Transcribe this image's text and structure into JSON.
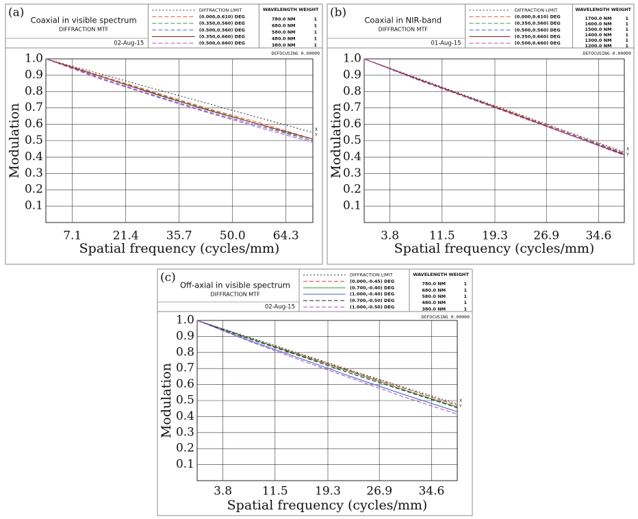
{
  "chart_data": [
    {
      "type": "line",
      "panel": "(a)",
      "title": "Coaxial in visible spectrum",
      "subtitle": "DIFFRACTION MTF",
      "date": "02-Aug-15",
      "wavelength_header": "WAVELENGTH WEIGHT",
      "wavelengths": [
        "780.0 NM",
        "680.0 NM",
        "580.0 NM",
        "480.0 NM",
        "380.0 NM"
      ],
      "weights": [
        "1",
        "1",
        "1",
        "1",
        "1"
      ],
      "defocusing": "DEFOCUSING 0.00000",
      "x_label": "Spatial frequency (cycles/mm)",
      "y_label": "Modulation",
      "end_marks": [
        "X",
        "Y"
      ],
      "x": [
        0,
        14.3,
        28.6,
        42.9,
        57.2,
        71.5
      ],
      "xlim": [
        0,
        71.5
      ],
      "ylim": [
        0,
        1
      ],
      "xticks": [
        7.1,
        21.4,
        35.7,
        {
          "value": 50,
          "label": "50.0"
        },
        64.3
      ],
      "yticks": [
        0.1,
        0.2,
        0.3,
        0.4,
        0.5,
        0.6,
        0.7,
        0.8,
        0.9,
        {
          "value": 1,
          "label": "1.0"
        }
      ],
      "grid": true,
      "series": [
        {
          "name": "DIFFRACTION LIMIT",
          "color": "#333333",
          "style": "dotted",
          "values": [
            1,
            0.91,
            0.82,
            0.73,
            0.64,
            0.55
          ]
        },
        {
          "name": "(0.000,0.610) DEG",
          "color": "#e8603a",
          "style": "dashed",
          "values": [
            1,
            0.9,
            0.8,
            0.7,
            0.61,
            0.51
          ]
        },
        {
          "name": "(0.350,0.560) DEG",
          "color": "#3a9a3a",
          "style": "dashed",
          "values": [
            1,
            0.895,
            0.795,
            0.695,
            0.6,
            0.5
          ]
        },
        {
          "name": "(0.500,0.560) DEG",
          "color": "#4a64d0",
          "style": "dashed",
          "values": [
            1,
            0.885,
            0.78,
            0.68,
            0.59,
            0.5
          ]
        },
        {
          "name": "(0.350,0.660) DEG",
          "color": "#8b1a1a",
          "style": "solid",
          "values": [
            1,
            0.895,
            0.79,
            0.69,
            0.6,
            0.51
          ]
        },
        {
          "name": "(0.500,0.660) DEG",
          "color": "#b050c0",
          "style": "dashed",
          "values": [
            1,
            0.88,
            0.775,
            0.675,
            0.58,
            0.49
          ]
        }
      ]
    },
    {
      "type": "line",
      "panel": "(b)",
      "title": "Coaxial in NIR-band",
      "subtitle": "DIFFRACTION MTF",
      "date": "01-Aug-15",
      "wavelength_header": "WAVELENGTH WEIGHT",
      "wavelengths": [
        "1700.0 NM",
        "1600.0 NM",
        "1500.0 NM",
        "1400.0 NM",
        "1300.0 NM",
        "1200.0 NM"
      ],
      "weights": [
        "1",
        "1",
        "1",
        "1",
        "1",
        "1"
      ],
      "defocusing": "DEFOCUSING 0.00000",
      "x_label": "Spatial frequency (cycles/mm)",
      "y_label": "Modulation",
      "end_marks": [
        "X",
        "Y"
      ],
      "x": [
        0,
        7.7,
        15.4,
        23,
        30.7,
        38.4
      ],
      "xlim": [
        0,
        38.4
      ],
      "ylim": [
        0,
        1
      ],
      "xticks": [
        3.8,
        11.5,
        19.3,
        26.9,
        34.6
      ],
      "yticks": [
        0.1,
        0.2,
        0.3,
        0.4,
        0.5,
        0.6,
        0.7,
        0.8,
        0.9,
        {
          "value": 1,
          "label": "1.0"
        }
      ],
      "grid": true,
      "series": [
        {
          "name": "DIFFRACTION LIMIT",
          "color": "#333333",
          "style": "dotted",
          "values": [
            1,
            0.885,
            0.77,
            0.66,
            0.545,
            0.43
          ]
        },
        {
          "name": "(0.000,0.610) DEG",
          "color": "#e8603a",
          "style": "dashed",
          "values": [
            1,
            0.88,
            0.765,
            0.655,
            0.54,
            0.425
          ]
        },
        {
          "name": "(0.350,0.560) DEG",
          "color": "#3a9a3a",
          "style": "dashed",
          "values": [
            1,
            0.88,
            0.765,
            0.65,
            0.535,
            0.42
          ]
        },
        {
          "name": "(0.500,0.560) DEG",
          "color": "#4a64d0",
          "style": "dashed",
          "values": [
            1,
            0.875,
            0.76,
            0.65,
            0.535,
            0.42
          ]
        },
        {
          "name": "(0.350,0.660) DEG",
          "color": "#8b1a1a",
          "style": "solid",
          "values": [
            1,
            0.88,
            0.765,
            0.65,
            0.53,
            0.415
          ]
        },
        {
          "name": "(0.500,0.660) DEG",
          "color": "#b050c0",
          "style": "dashed",
          "values": [
            1,
            0.875,
            0.76,
            0.645,
            0.53,
            0.41
          ]
        }
      ]
    },
    {
      "type": "line",
      "panel": "(c)",
      "title": "Off-axial in visible spectrum",
      "subtitle": "DIFFRACTION MTF",
      "date": "02-Aug-15",
      "wavelength_header": "WAVELENGTH WEIGHT",
      "wavelengths": [
        "780.0 NM",
        "680.0 NM",
        "580.0 NM",
        "480.0 NM",
        "380.0 NM"
      ],
      "weights": [
        "1",
        "1",
        "1",
        "1",
        "1"
      ],
      "defocusing": "DEFOCUSING 0.00000",
      "x_label": "Spatial frequency (cycles/mm)",
      "y_label": "Modulation",
      "end_marks": [
        "X",
        "Y"
      ],
      "x": [
        0,
        7.7,
        15.4,
        23,
        30.7,
        38.4
      ],
      "xlim": [
        0,
        38.4
      ],
      "ylim": [
        0,
        1
      ],
      "xticks": [
        3.8,
        11.5,
        19.3,
        26.9,
        34.6
      ],
      "yticks": [
        0.1,
        0.2,
        0.3,
        0.4,
        0.5,
        0.6,
        0.7,
        0.8,
        0.9,
        {
          "value": 1,
          "label": "1.0"
        }
      ],
      "grid": true,
      "series": [
        {
          "name": "DIFFRACTION LIMIT",
          "color": "#333333",
          "style": "dotted",
          "values": [
            1,
            0.895,
            0.79,
            0.685,
            0.58,
            0.48
          ]
        },
        {
          "name": "(0.000,-0.45) DEG",
          "color": "#d83030",
          "style": "dashed",
          "values": [
            1,
            0.89,
            0.785,
            0.68,
            0.575,
            0.47
          ]
        },
        {
          "name": "(0.700,-0.40) DEG",
          "color": "#3a9a3a",
          "style": "solid",
          "values": [
            1,
            0.89,
            0.78,
            0.675,
            0.565,
            0.46
          ]
        },
        {
          "name": "(1.000,-0.40) DEG",
          "color": "#4a64d0",
          "style": "solid",
          "values": [
            1,
            0.875,
            0.76,
            0.645,
            0.535,
            0.43
          ]
        },
        {
          "name": "(0.700,-0.50) DEG",
          "color": "#222222",
          "style": "dashed",
          "values": [
            1,
            0.885,
            0.775,
            0.665,
            0.56,
            0.455
          ]
        },
        {
          "name": "(1.000,-0.50) DEG",
          "color": "#b050c0",
          "style": "dashed",
          "values": [
            1,
            0.87,
            0.75,
            0.635,
            0.52,
            0.415
          ]
        }
      ]
    }
  ]
}
